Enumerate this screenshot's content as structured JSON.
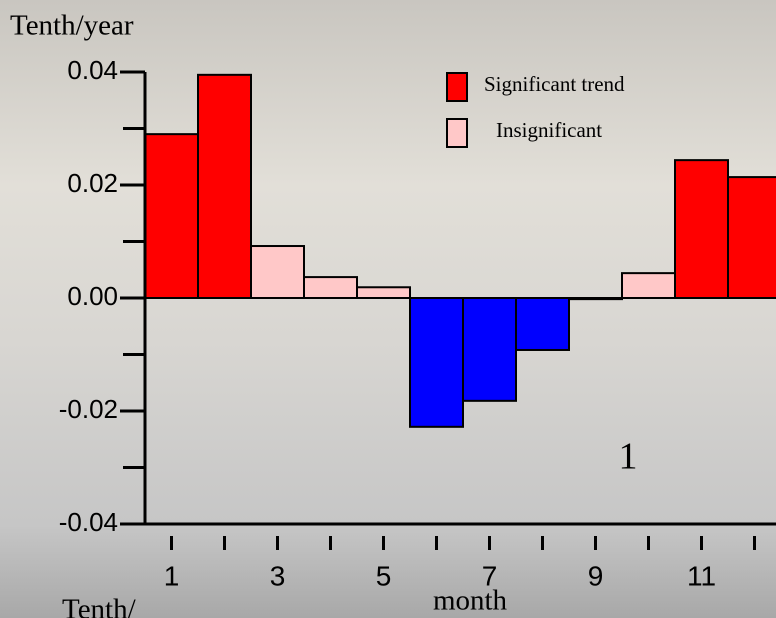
{
  "chart_data": {
    "type": "bar",
    "y_label": "Tenth/year",
    "x_label": "month",
    "annotation": "1",
    "bottom_text": "Tenth/",
    "x": [
      1,
      2,
      3,
      4,
      5,
      6,
      7,
      8,
      9,
      10,
      11,
      12
    ],
    "values": [
      0.029,
      0.0395,
      0.0092,
      0.0037,
      0.0019,
      -0.0228,
      -0.0182,
      -0.0092,
      -0.0002,
      0.0044,
      0.0244,
      0.0214
    ],
    "colors": [
      "#ff0000",
      "#ff0000",
      "#ffc8c8",
      "#ffc8c8",
      "#ffc8c8",
      "#0000ff",
      "#0000ff",
      "#0000ff",
      "#ffc8c8",
      "#ffc8c8",
      "#ff0000",
      "#ff0000"
    ],
    "legend": [
      {
        "name": "Significant trend",
        "color": "#ff0000"
      },
      {
        "name": "Insignificant",
        "color": "#ffc8c8"
      }
    ],
    "xlim": [
      0.5,
      12.5
    ],
    "xticks": [
      1,
      3,
      5,
      7,
      9,
      11
    ],
    "xminor_ticks": [
      2,
      4,
      6,
      8,
      10,
      12
    ],
    "ylim": [
      -0.04,
      0.04
    ],
    "yticks": [
      {
        "value": 0.04,
        "label": "0.04"
      },
      {
        "value": 0.02,
        "label": "0.02"
      },
      {
        "value": 0,
        "label": "0.00"
      },
      {
        "value": -0.02,
        "label": "-0.02"
      },
      {
        "value": -0.04,
        "label": "-0.04"
      }
    ],
    "yminor_ticks": [
      0.03,
      0.01,
      -0.01,
      -0.03
    ]
  }
}
